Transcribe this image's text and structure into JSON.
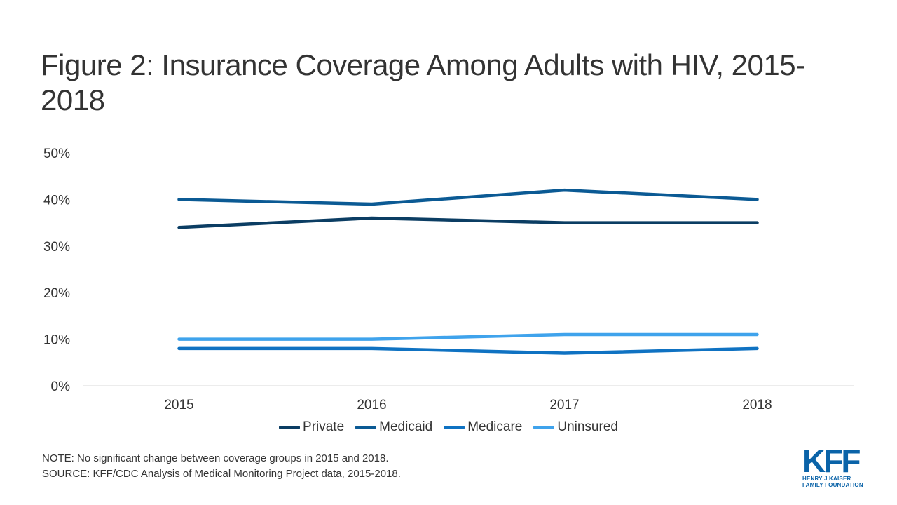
{
  "title": "Figure 2: Insurance Coverage Among Adults with HIV, 2015-2018",
  "note": "NOTE: No significant change between coverage groups in 2015 and 2018.",
  "source": "SOURCE: KFF/CDC Analysis of Medical Monitoring Project data, 2015-2018.",
  "logo": {
    "main": "KFF",
    "line1": "HENRY J KAISER",
    "line2": "FAMILY FOUNDATION",
    "color": "#0a63a8"
  },
  "chart_data": {
    "type": "line",
    "title": "Figure 2: Insurance Coverage Among Adults with HIV, 2015-2018",
    "xlabel": "",
    "ylabel": "",
    "categories": [
      "2015",
      "2016",
      "2017",
      "2018"
    ],
    "ylim": [
      0,
      50
    ],
    "yticks": [
      "0%",
      "10%",
      "20%",
      "30%",
      "40%",
      "50%"
    ],
    "grid": false,
    "legend_position": "bottom",
    "series": [
      {
        "name": "Private",
        "color": "#0b3d63",
        "values": [
          34,
          36,
          35,
          35
        ]
      },
      {
        "name": "Medicaid",
        "color": "#0b5a94",
        "values": [
          40,
          39,
          42,
          40
        ]
      },
      {
        "name": "Medicare",
        "color": "#0f72c2",
        "values": [
          8,
          8,
          7,
          8
        ]
      },
      {
        "name": "Uninsured",
        "color": "#3fa3ec",
        "values": [
          10,
          10,
          11,
          11
        ]
      }
    ]
  }
}
